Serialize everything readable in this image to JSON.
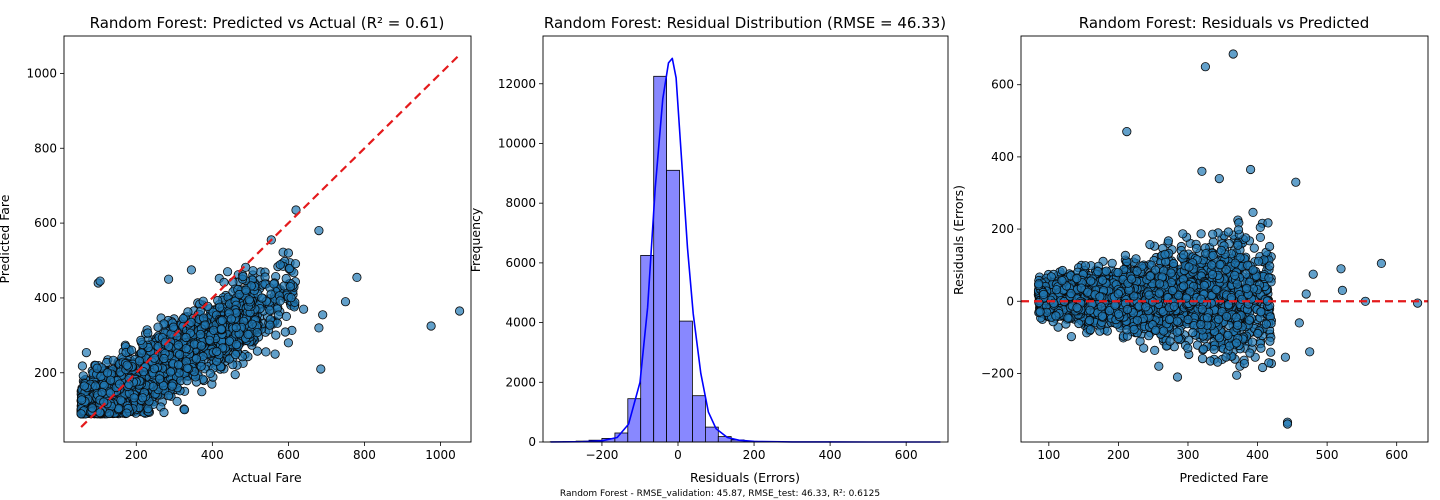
{
  "figure": {
    "footer": "Random Forest - RMSE_validation: 45.87, RMSE_test: 46.33, R²: 0.6125"
  },
  "chart_data": [
    {
      "type": "scatter",
      "title": "Random Forest: Predicted vs Actual (R² = 0.61)",
      "xlabel": "Actual Fare",
      "ylabel": "Predicted Fare",
      "xlim": [
        10,
        1080
      ],
      "ylim": [
        15,
        1100
      ],
      "xticks": [
        200,
        400,
        600,
        800,
        1000
      ],
      "yticks": [
        200,
        400,
        600,
        800,
        1000
      ],
      "grid": false,
      "point_color": "#1f77b4",
      "reference_line": {
        "x": [
          55,
          1050
        ],
        "y": [
          55,
          1050
        ],
        "color": "#e41a1c",
        "style": "dashed"
      },
      "cloud": {
        "x_range": [
          55,
          620
        ],
        "y_min_near": 90,
        "trend_slope": 0.62
      },
      "outliers": [
        {
          "x": 100,
          "y": 440
        },
        {
          "x": 105,
          "y": 445
        },
        {
          "x": 285,
          "y": 450
        },
        {
          "x": 345,
          "y": 475
        },
        {
          "x": 440,
          "y": 470
        },
        {
          "x": 555,
          "y": 555
        },
        {
          "x": 600,
          "y": 520
        },
        {
          "x": 620,
          "y": 635
        },
        {
          "x": 680,
          "y": 580
        },
        {
          "x": 690,
          "y": 355
        },
        {
          "x": 680,
          "y": 320
        },
        {
          "x": 685,
          "y": 210
        },
        {
          "x": 750,
          "y": 390
        },
        {
          "x": 780,
          "y": 455
        },
        {
          "x": 975,
          "y": 325
        },
        {
          "x": 1050,
          "y": 365
        },
        {
          "x": 640,
          "y": 370
        },
        {
          "x": 605,
          "y": 430
        },
        {
          "x": 600,
          "y": 280
        },
        {
          "x": 460,
          "y": 195
        },
        {
          "x": 565,
          "y": 250
        }
      ]
    },
    {
      "type": "bar",
      "title": "Random Forest: Residual Distribution (RMSE = 46.33)",
      "xlabel": "Residuals (Errors)",
      "ylabel": "Frequency",
      "xlim": [
        -355,
        710
      ],
      "ylim": [
        0,
        13600
      ],
      "xticks": [
        -200,
        0,
        200,
        400,
        600
      ],
      "yticks": [
        0,
        2000,
        4000,
        6000,
        8000,
        10000,
        12000
      ],
      "bin_width": 34,
      "bins_left": [
        -336,
        -302,
        -268,
        -234,
        -200,
        -166,
        -132,
        -98,
        -64,
        -30,
        4,
        38,
        72,
        106,
        140,
        174,
        208
      ],
      "counts": [
        10,
        15,
        30,
        60,
        120,
        300,
        1450,
        6250,
        12250,
        9100,
        4050,
        1550,
        500,
        180,
        70,
        25,
        10
      ],
      "bar_color": "#8888ff",
      "kde": {
        "color": "#0000ff",
        "x": [
          -335,
          -250,
          -200,
          -160,
          -130,
          -100,
          -80,
          -60,
          -40,
          -25,
          -15,
          -5,
          5,
          15,
          25,
          40,
          60,
          80,
          100,
          130,
          160,
          200,
          300,
          400,
          500,
          600,
          690
        ],
        "y": [
          0,
          10,
          40,
          150,
          600,
          2000,
          4500,
          8500,
          11500,
          12700,
          12850,
          12200,
          10300,
          8400,
          6500,
          4300,
          2300,
          1000,
          450,
          150,
          60,
          20,
          5,
          2,
          1,
          0,
          0
        ]
      },
      "grid": false
    },
    {
      "type": "scatter",
      "title": "Random Forest: Residuals vs Predicted",
      "xlabel": "Predicted Fare",
      "ylabel": "Residuals (Errors)",
      "xlim": [
        60,
        645
      ],
      "ylim": [
        -390,
        735
      ],
      "xticks": [
        100,
        200,
        300,
        400,
        500,
        600
      ],
      "yticks": [
        -200,
        0,
        200,
        400,
        600
      ],
      "grid": false,
      "point_color": "#1f77b4",
      "reference_line": {
        "y": 0,
        "color": "#e41a1c",
        "style": "dashed"
      },
      "cloud": {
        "x_range": [
          85,
          420
        ]
      },
      "outliers": [
        {
          "x": 212,
          "y": 470
        },
        {
          "x": 325,
          "y": 650
        },
        {
          "x": 365,
          "y": 685
        },
        {
          "x": 455,
          "y": 330
        },
        {
          "x": 390,
          "y": 365
        },
        {
          "x": 345,
          "y": 340
        },
        {
          "x": 320,
          "y": 360
        },
        {
          "x": 520,
          "y": 90
        },
        {
          "x": 578,
          "y": 105
        },
        {
          "x": 630,
          "y": -5
        },
        {
          "x": 555,
          "y": 0
        },
        {
          "x": 522,
          "y": 30
        },
        {
          "x": 475,
          "y": -140
        },
        {
          "x": 440,
          "y": -155
        },
        {
          "x": 443,
          "y": -335
        },
        {
          "x": 443,
          "y": -340
        },
        {
          "x": 285,
          "y": -210
        },
        {
          "x": 258,
          "y": -180
        },
        {
          "x": 370,
          "y": -205
        },
        {
          "x": 480,
          "y": 75
        },
        {
          "x": 470,
          "y": 20
        },
        {
          "x": 460,
          "y": -60
        },
        {
          "x": 405,
          "y": -130
        }
      ]
    }
  ]
}
